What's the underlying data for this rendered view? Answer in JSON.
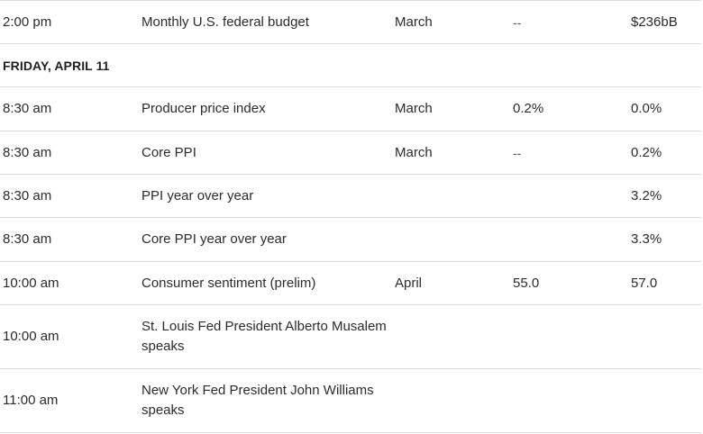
{
  "rows": [
    {
      "time": "2:00 pm",
      "report": "Monthly U.S. federal budget",
      "period": "March",
      "forecast": "--",
      "previous": "$236bB"
    },
    {
      "day_header": "FRIDAY, APRIL 11"
    },
    {
      "time": "8:30 am",
      "report": "Producer price index",
      "period": "March",
      "forecast": "0.2%",
      "previous": "0.0%"
    },
    {
      "time": "8:30 am",
      "report": "Core PPI",
      "period": "March",
      "forecast": "--",
      "previous": "0.2%"
    },
    {
      "time": "8:30 am",
      "report": "PPI year over year",
      "period": "",
      "forecast": "",
      "previous": "3.2%"
    },
    {
      "time": "8:30 am",
      "report": "Core PPI year over year",
      "period": "",
      "forecast": "",
      "previous": "3.3%"
    },
    {
      "time": "10:00 am",
      "report": "Consumer sentiment (prelim)",
      "period": "April",
      "forecast": "55.0",
      "previous": "57.0"
    },
    {
      "time": "10:00 am",
      "report": "St. Louis Fed President Alberto Musalem speaks",
      "period": "",
      "forecast": "",
      "previous": ""
    },
    {
      "time": "11:00 am",
      "report": "New York Fed President John Williams speaks",
      "period": "",
      "forecast": "",
      "previous": ""
    }
  ]
}
